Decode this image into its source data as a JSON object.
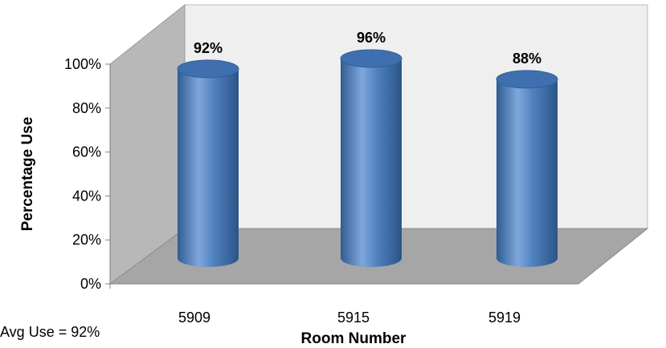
{
  "chart_data": {
    "type": "bar",
    "style": "3d-cylinder",
    "categories": [
      "5909",
      "5915",
      "5919"
    ],
    "values": [
      92,
      96,
      88
    ],
    "data_labels": [
      "92%",
      "96%",
      "88%"
    ],
    "xlabel": "Room Number",
    "ylabel": "Percentage Use",
    "yticks": [
      "0%",
      "20%",
      "40%",
      "60%",
      "80%",
      "100%"
    ],
    "ylim": [
      0,
      100
    ],
    "grid": false,
    "legend": "none",
    "annotation": "Avg Use = 92%",
    "colors": {
      "bar": "#4f81bd",
      "bar_dark": "#2f5d93",
      "bar_light": "#7fa7db",
      "back_wall": "#efefef",
      "side_wall": "#b8b8b8",
      "floor": "#a6a6a6"
    }
  }
}
